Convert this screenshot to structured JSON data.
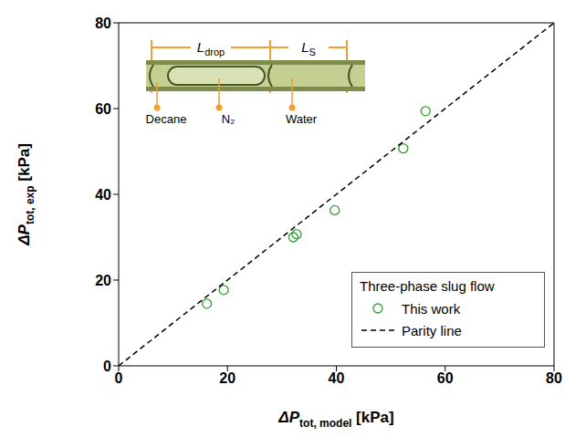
{
  "chart_data": {
    "type": "scatter",
    "x_label": {
      "main": "ΔP",
      "sub": "tot, model",
      "unit": "[kPa]"
    },
    "y_label": {
      "main": "ΔP",
      "sub": "tot, exp",
      "unit": "[kPa]"
    },
    "xlim": [
      0,
      80
    ],
    "ylim": [
      0,
      80
    ],
    "xticks": [
      0,
      20,
      40,
      60,
      80
    ],
    "yticks": [
      0,
      20,
      40,
      60,
      80
    ],
    "grid": false,
    "legend": "lower right",
    "legend_title": "Three-phase slug flow",
    "series": [
      {
        "name": "This work",
        "type": "scatter",
        "marker": "circle",
        "color": "#2ca02c",
        "x": [
          16.2,
          19.3,
          32.1,
          32.7,
          39.7,
          52.3,
          56.4
        ],
        "values": [
          14.5,
          17.7,
          30.0,
          30.7,
          36.3,
          50.7,
          59.4
        ]
      },
      {
        "name": "Parity line",
        "type": "line",
        "line_style": "dashed",
        "color": "#000000",
        "x": [
          0,
          80
        ],
        "values": [
          0,
          80
        ]
      }
    ],
    "inset": {
      "lengths": [
        {
          "main": "L",
          "sub": "drop"
        },
        {
          "main": "L",
          "sub": "S"
        }
      ],
      "phases": [
        "Decane",
        "N₂",
        "Water"
      ]
    }
  }
}
